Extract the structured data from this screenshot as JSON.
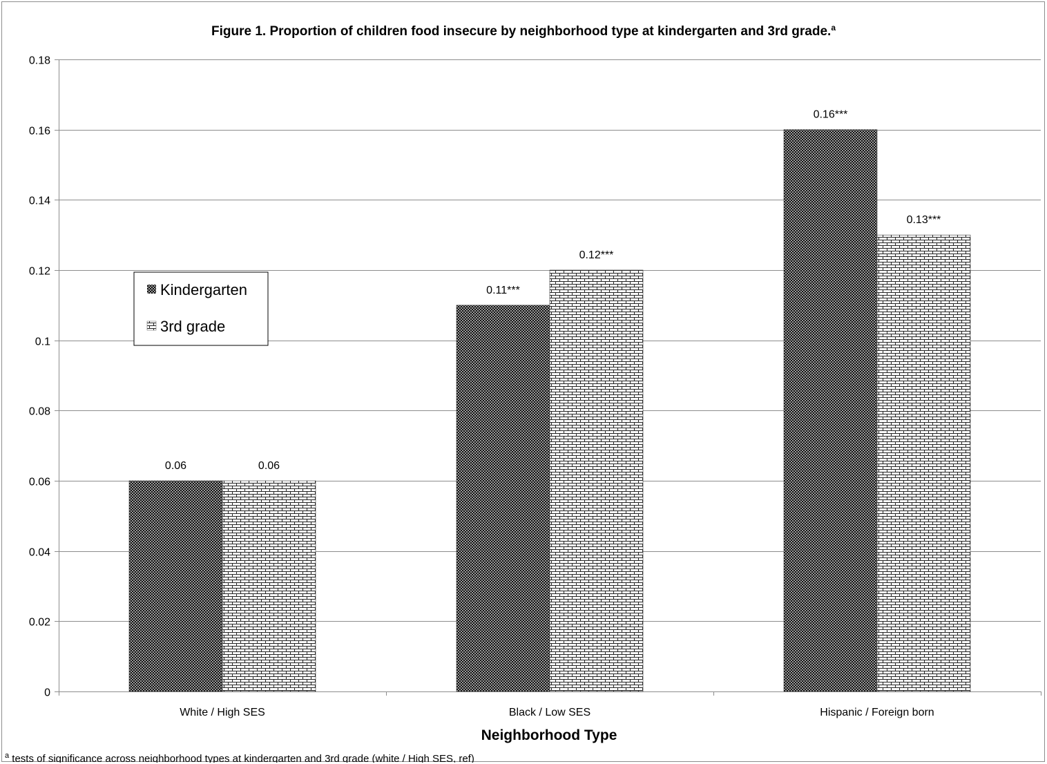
{
  "chart_data": {
    "type": "bar",
    "title": "Figure 1. Proportion of children food insecure by neighborhood type at kindergarten and 3rd grade.",
    "title_superscript": "a",
    "xlabel": "Neighborhood Type",
    "ylabel": "",
    "ylim": [
      0,
      0.18
    ],
    "yticks": [
      "0",
      "0.02",
      "0.04",
      "0.06",
      "0.08",
      "0.1",
      "0.12",
      "0.14",
      "0.16",
      "0.18"
    ],
    "ytick_values": [
      0,
      0.02,
      0.04,
      0.06,
      0.08,
      0.1,
      0.12,
      0.14,
      0.16,
      0.18
    ],
    "grid": true,
    "legend_position": "left",
    "categories": [
      "White / High SES",
      "Black / Low SES",
      "Hispanic / Foreign born"
    ],
    "series": [
      {
        "name": "Kindergarten",
        "values": [
          0.06,
          0.11,
          0.16
        ],
        "data_labels": [
          "0.06",
          "0.11***",
          "0.16***"
        ],
        "pattern": "dots",
        "color": "#1a1a1a"
      },
      {
        "name": "3rd grade",
        "values": [
          0.06,
          0.12,
          0.13
        ],
        "data_labels": [
          "0.06",
          "0.12***",
          "0.13***"
        ],
        "pattern": "bricks",
        "color": "#1a1a1a"
      }
    ],
    "footnote_marker": "a",
    "footnote": " tests of significance across neighborhood types at kindergarten and 3rd grade (white / High SES, ref)"
  }
}
